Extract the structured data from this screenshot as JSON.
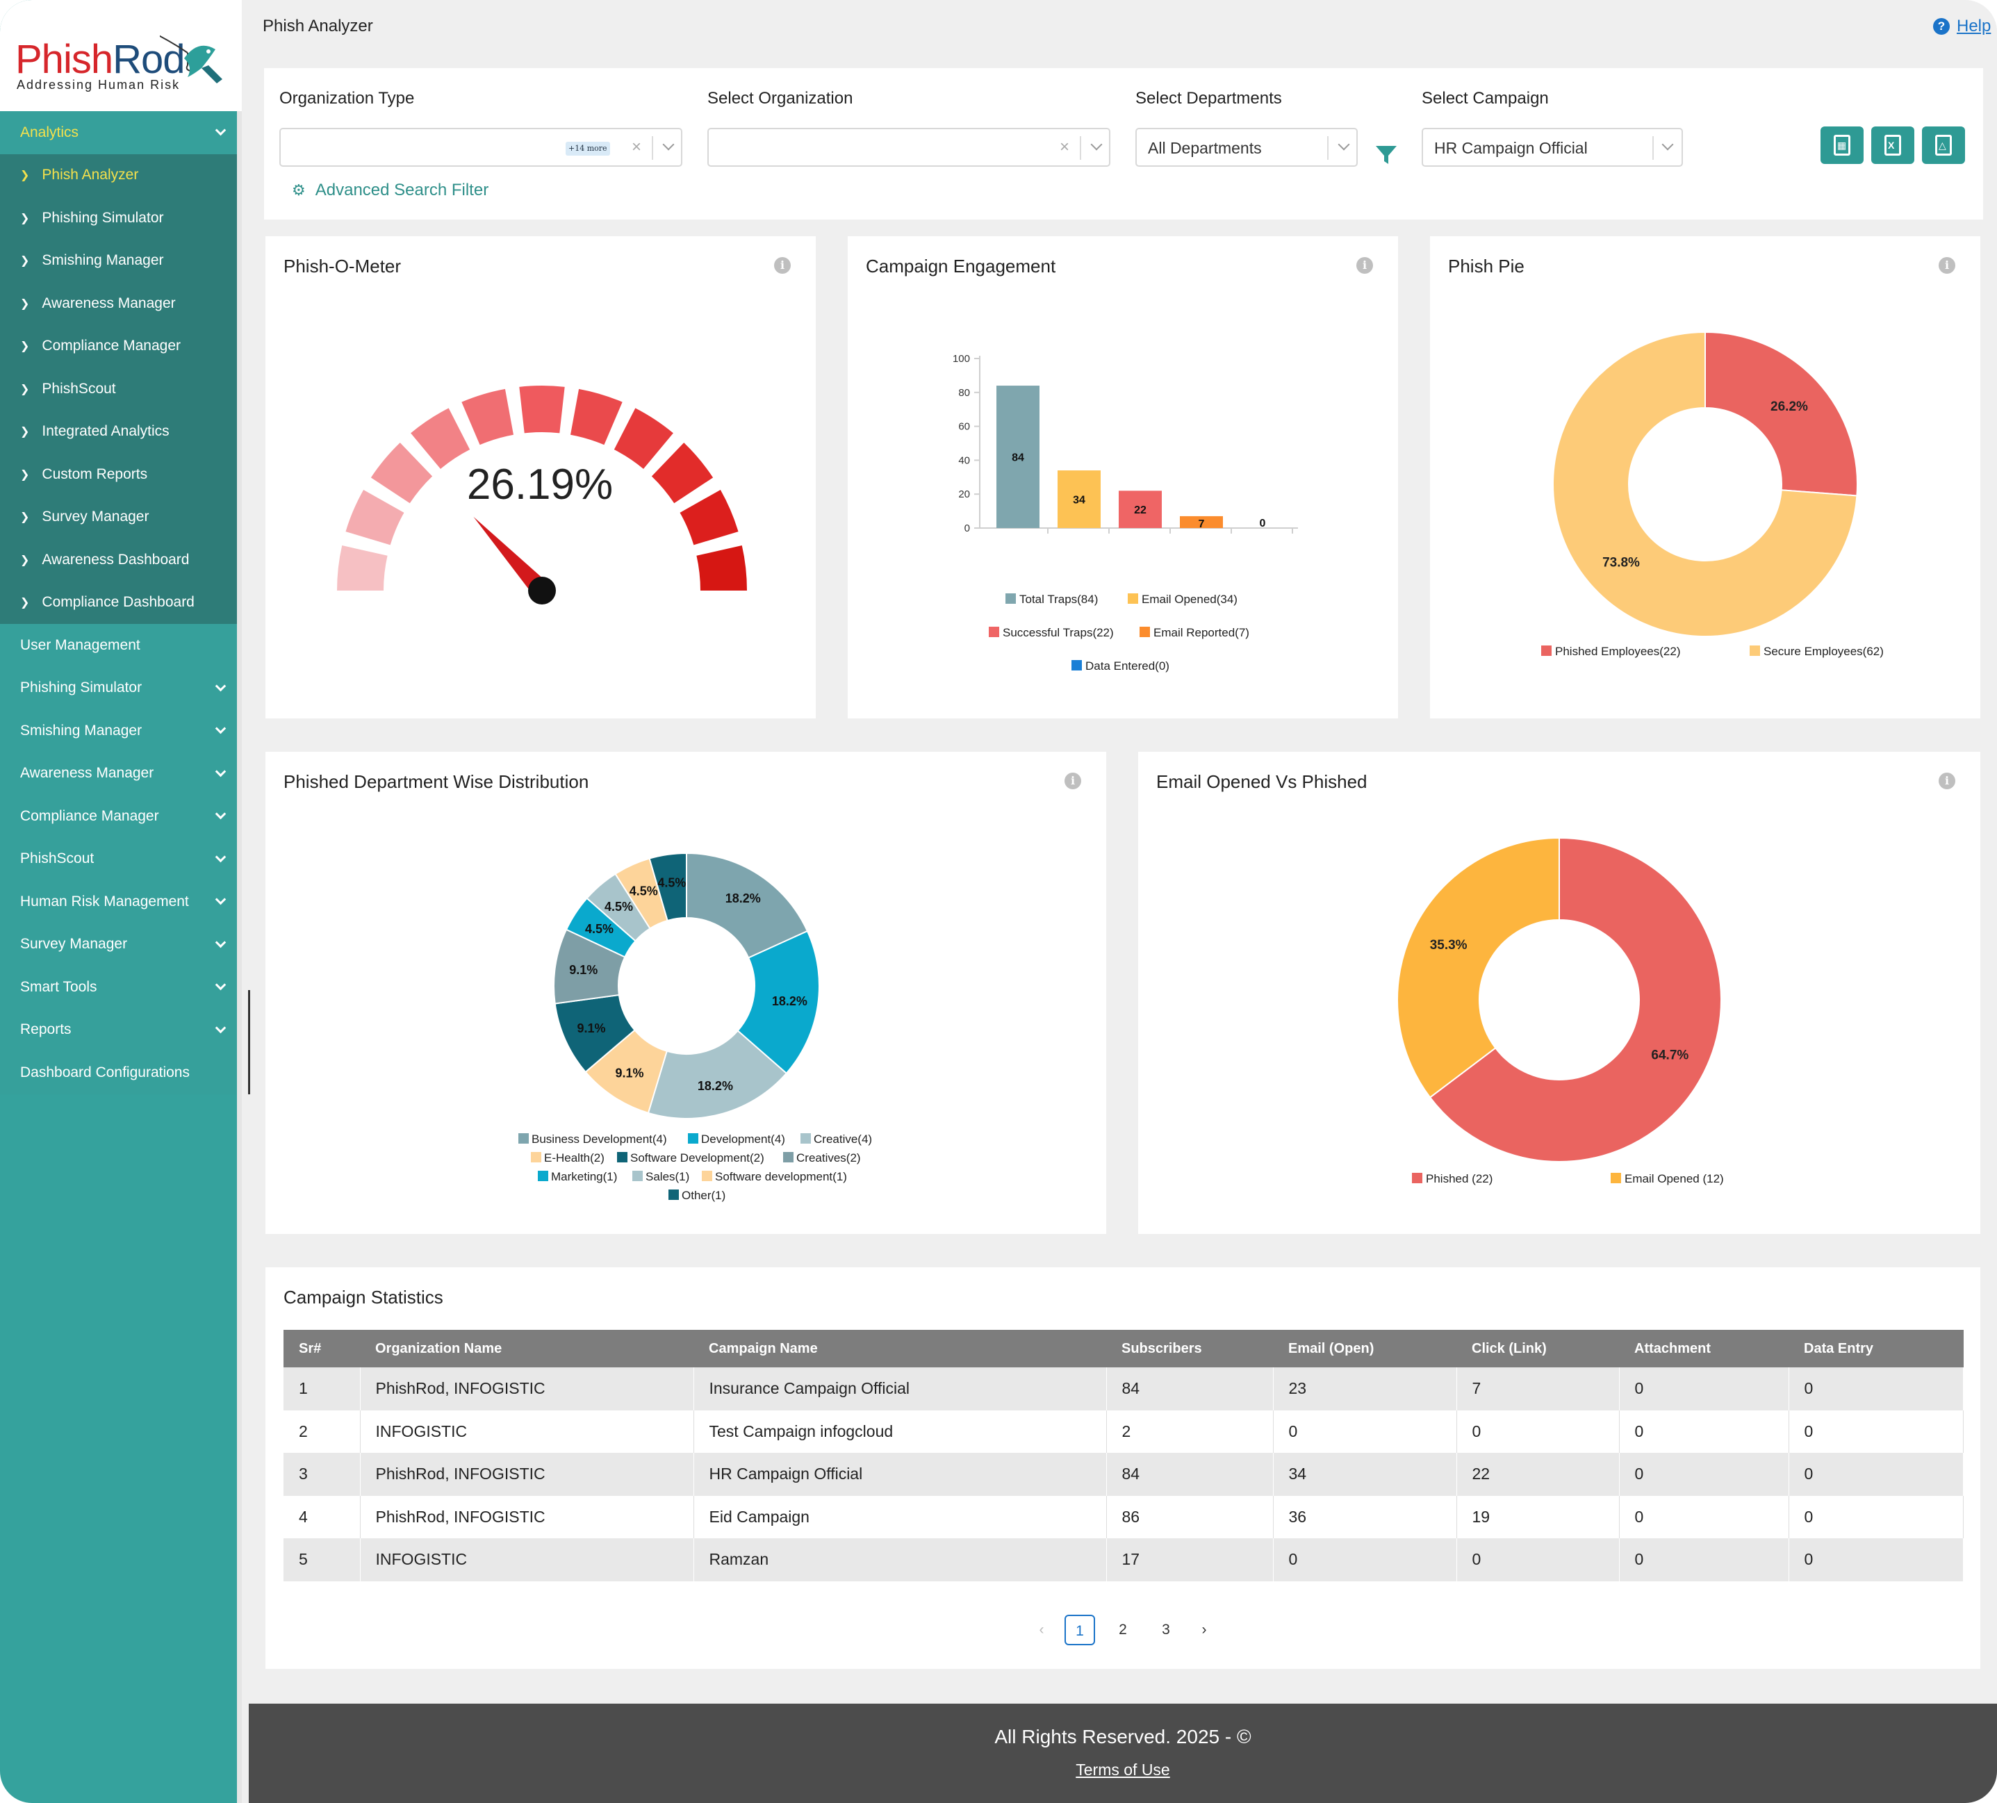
{
  "brand": {
    "name_part1": "Phish",
    "name_part2": "Rod",
    "tagline": "Addressing  Human  Risk"
  },
  "sidebar": {
    "analytics": {
      "label": "Analytics",
      "items": [
        "Phish Analyzer",
        "Phishing Simulator",
        "Smishing Manager",
        "Awareness Manager",
        "Compliance Manager",
        "PhishScout",
        "Integrated Analytics",
        "Custom Reports",
        "Survey Manager",
        "Awareness Dashboard",
        "Compliance Dashboard"
      ]
    },
    "sections": [
      {
        "label": "User Management",
        "has_children": false
      },
      {
        "label": "Phishing Simulator",
        "has_children": true
      },
      {
        "label": "Smishing Manager",
        "has_children": true
      },
      {
        "label": "Awareness Manager",
        "has_children": true
      },
      {
        "label": "Compliance Manager",
        "has_children": true
      },
      {
        "label": "PhishScout",
        "has_children": true
      },
      {
        "label": "Human Risk Management",
        "has_children": true
      },
      {
        "label": "Survey Manager",
        "has_children": true
      },
      {
        "label": "Smart Tools",
        "has_children": true
      },
      {
        "label": "Reports",
        "has_children": true
      },
      {
        "label": "Dashboard Configurations",
        "has_children": false
      }
    ]
  },
  "header": {
    "title": "Phish Analyzer",
    "help_label": "Help"
  },
  "filters": {
    "org_type": {
      "label": "Organization Type",
      "more": "+14 more"
    },
    "organization": {
      "label": "Select Organization"
    },
    "departments": {
      "label": "Select Departments",
      "value": "All Departments"
    },
    "campaign": {
      "label": "Select Campaign",
      "value": "HR Campaign Official"
    },
    "advanced": "Advanced Search Filter"
  },
  "colors": {
    "brand_teal": "#35a29d",
    "active_yellow": "#f4e14c",
    "phished_red": "#ea6460",
    "secure_yellow": "#fdc977",
    "opened_orange": "#fdb53e"
  },
  "meter": {
    "title": "Phish-O-Meter",
    "value_text": "26.19%",
    "value": 26.19
  },
  "engagement": {
    "title": "Campaign Engagement",
    "chart_data": {
      "type": "bar",
      "categories": [
        "Total Traps",
        "Email Opened",
        "Successful Traps",
        "Email Reported",
        "Data Entered"
      ],
      "values": [
        84,
        34,
        22,
        7,
        0
      ],
      "colors": [
        "#7fa6ae",
        "#fdc254",
        "#ef6565",
        "#fb8c2d",
        "#1a7fd6"
      ],
      "ylim": [
        0,
        100
      ],
      "yticks": [
        "0",
        "20",
        "40",
        "60",
        "80",
        "100"
      ],
      "legend": [
        "Total Traps(84)",
        "Email Opened(34)",
        "Successful Traps(22)",
        "Email Reported(7)",
        "Data Entered(0)"
      ]
    }
  },
  "pie": {
    "title": "Phish Pie",
    "chart_data": {
      "type": "pie",
      "labels": [
        "Phished Employees",
        "Secure Employees"
      ],
      "values": [
        26.2,
        73.8
      ],
      "value_labels": [
        "26.2%",
        "73.8%"
      ],
      "colors": [
        "#ea6460",
        "#fdcb78"
      ],
      "legend": [
        "Phished Employees(22)",
        "Secure Employees(62)"
      ]
    }
  },
  "department": {
    "title": "Phished Department Wise Distribution",
    "chart_data": {
      "type": "pie",
      "labels": [
        "Business Development",
        "Development",
        "Creative",
        "E-Health",
        "Software Development",
        "Creatives",
        "Marketing",
        "Sales",
        "Software development",
        "Other"
      ],
      "values": [
        18.2,
        18.2,
        18.2,
        9.1,
        9.1,
        9.1,
        4.5,
        4.5,
        4.5,
        4.5
      ],
      "value_labels": [
        "18.2%",
        "18.2%",
        "18.2%",
        "9.1%",
        "9.1%",
        "9.1%",
        "4.5%",
        "4.5%",
        "4.5%",
        "4.5%"
      ],
      "colors": [
        "#7ea5ae",
        "#0aa9cd",
        "#a8c4cb",
        "#fdd49a",
        "#0f6477",
        "#7e9ea6",
        "#0aa9cd",
        "#a8c4cb",
        "#fdd49a",
        "#0f6477"
      ],
      "legend": [
        "Business Development(4)",
        "Development(4)",
        "Creative(4)",
        "E-Health(2)",
        "Software Development(2)",
        "Creatives(2)",
        "Marketing(1)",
        "Sales(1)",
        "Software development(1)",
        "Other(1)"
      ]
    }
  },
  "opened_vs_phished": {
    "title": "Email Opened Vs Phished",
    "chart_data": {
      "type": "pie",
      "labels": [
        "Phished",
        "Email Opened"
      ],
      "values": [
        64.7,
        35.3
      ],
      "value_labels": [
        "64.7%",
        "35.3%"
      ],
      "colors": [
        "#ea6460",
        "#fdb53e"
      ],
      "legend": [
        "Phished (22)",
        "Email Opened (12)"
      ]
    }
  },
  "stats": {
    "title": "Campaign Statistics",
    "columns": [
      "Sr#",
      "Organization Name",
      "Campaign Name",
      "Subscribers",
      "Email (Open)",
      "Click (Link)",
      "Attachment",
      "Data Entry"
    ],
    "rows": [
      [
        "1",
        "PhishRod, INFOGISTIC",
        "Insurance Campaign Official",
        "84",
        "23",
        "7",
        "0",
        "0"
      ],
      [
        "2",
        "INFOGISTIC",
        "Test Campaign infogcloud",
        "2",
        "0",
        "0",
        "0",
        "0"
      ],
      [
        "3",
        "PhishRod, INFOGISTIC",
        "HR Campaign Official",
        "84",
        "34",
        "22",
        "0",
        "0"
      ],
      [
        "4",
        "PhishRod, INFOGISTIC",
        "Eid Campaign",
        "86",
        "36",
        "19",
        "0",
        "0"
      ],
      [
        "5",
        "INFOGISTIC",
        "Ramzan",
        "17",
        "0",
        "0",
        "0",
        "0"
      ]
    ],
    "pages": [
      "1",
      "2",
      "3"
    ],
    "current_page": "1"
  },
  "footer": {
    "copyright": "All Rights Reserved. 2025 - ©",
    "terms": "Terms of Use"
  }
}
